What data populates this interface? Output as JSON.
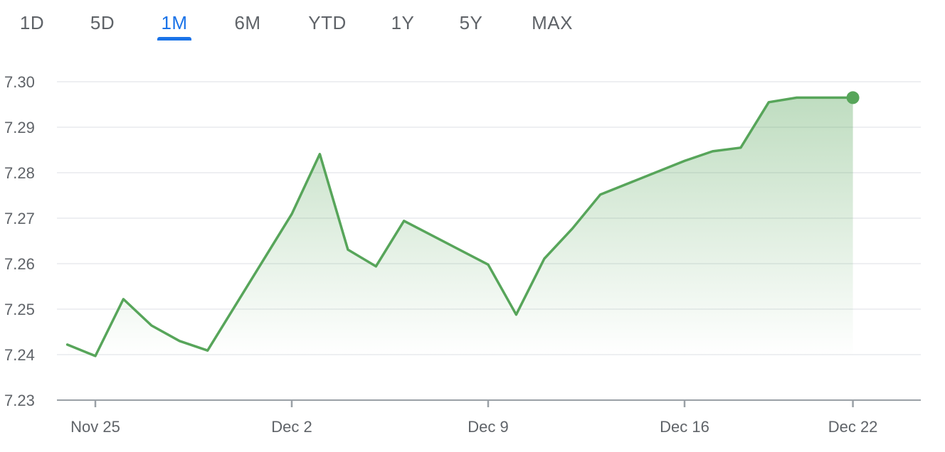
{
  "range_tabs": [
    {
      "label": "1D",
      "active": false
    },
    {
      "label": "5D",
      "active": false
    },
    {
      "label": "1M",
      "active": true
    },
    {
      "label": "6M",
      "active": false
    },
    {
      "label": "YTD",
      "active": false
    },
    {
      "label": "1Y",
      "active": false
    },
    {
      "label": "5Y",
      "active": false
    },
    {
      "label": "MAX",
      "active": false
    }
  ],
  "colors": {
    "line": "#57a55a",
    "fill_top": "#57a55a",
    "active_tab": "#1a73e8",
    "grid": "#e8eaed",
    "axis": "#9aa0a6",
    "text": "#5f6368"
  },
  "chart_data": {
    "type": "area",
    "title": "",
    "xlabel": "",
    "ylabel": "",
    "ylim": [
      7.23,
      7.3
    ],
    "y_ticks": [
      7.3,
      7.29,
      7.28,
      7.27,
      7.26,
      7.25,
      7.24,
      7.23
    ],
    "y_tick_labels": [
      "7.30",
      "7.29",
      "7.28",
      "7.27",
      "7.26",
      "7.25",
      "7.24",
      "7.23"
    ],
    "x_tick_labels": [
      "Nov 25",
      "Dec 2",
      "Dec 9",
      "Dec 16",
      "Dec 22"
    ],
    "x_tick_dates": [
      "2024-11-25",
      "2024-12-02",
      "2024-12-09",
      "2024-12-16",
      "2024-12-22"
    ],
    "grid": true,
    "legend": "none",
    "series": [
      {
        "points": [
          {
            "date": "2024-11-24",
            "value": 7.2422
          },
          {
            "date": "2024-11-25",
            "value": 7.2397
          },
          {
            "date": "2024-11-26",
            "value": 7.2522
          },
          {
            "date": "2024-11-27",
            "value": 7.2464
          },
          {
            "date": "2024-11-28",
            "value": 7.243
          },
          {
            "date": "2024-11-29",
            "value": 7.2409
          },
          {
            "date": "2024-12-02",
            "value": 7.2709
          },
          {
            "date": "2024-12-03",
            "value": 7.2841
          },
          {
            "date": "2024-12-04",
            "value": 7.2631
          },
          {
            "date": "2024-12-05",
            "value": 7.2594
          },
          {
            "date": "2024-12-06",
            "value": 7.2694
          },
          {
            "date": "2024-12-09",
            "value": 7.2598
          },
          {
            "date": "2024-12-10",
            "value": 7.2488
          },
          {
            "date": "2024-12-11",
            "value": 7.2611
          },
          {
            "date": "2024-12-12",
            "value": 7.2677
          },
          {
            "date": "2024-12-13",
            "value": 7.2752
          },
          {
            "date": "2024-12-16",
            "value": 7.2826
          },
          {
            "date": "2024-12-17",
            "value": 7.2847
          },
          {
            "date": "2024-12-18",
            "value": 7.2855
          },
          {
            "date": "2024-12-19",
            "value": 7.2955
          },
          {
            "date": "2024-12-20",
            "value": 7.2965
          },
          {
            "date": "2024-12-22",
            "value": 7.2965
          }
        ]
      }
    ]
  }
}
